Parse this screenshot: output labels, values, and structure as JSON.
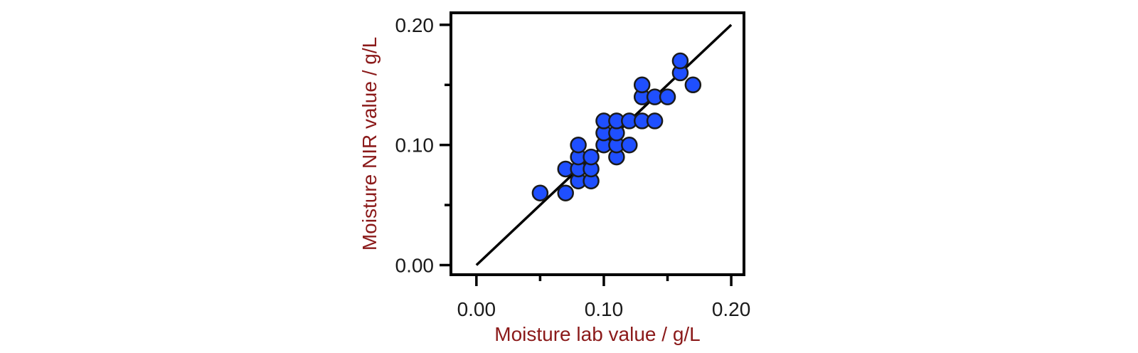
{
  "chart_data": {
    "type": "scatter",
    "title": "",
    "xlabel": "Moisture lab value / g/L",
    "ylabel": "Moisture NIR value / g/L",
    "xlim": [
      -0.02,
      0.21
    ],
    "ylim": [
      -0.008,
      0.21
    ],
    "x_ticks": [
      0.0,
      0.1,
      0.2
    ],
    "x_tick_labels": [
      "0.00",
      "0.10",
      "0.20"
    ],
    "y_ticks": [
      0.0,
      0.1,
      0.2
    ],
    "y_tick_labels": [
      "0.00",
      "0.10",
      "0.20"
    ],
    "grid": false,
    "series": [
      {
        "marker_color": "#1f4fff",
        "points": [
          {
            "x": 0.05,
            "y": 0.06
          },
          {
            "x": 0.07,
            "y": 0.06
          },
          {
            "x": 0.07,
            "y": 0.08
          },
          {
            "x": 0.08,
            "y": 0.07
          },
          {
            "x": 0.08,
            "y": 0.08
          },
          {
            "x": 0.08,
            "y": 0.09
          },
          {
            "x": 0.08,
            "y": 0.1
          },
          {
            "x": 0.09,
            "y": 0.07
          },
          {
            "x": 0.09,
            "y": 0.08
          },
          {
            "x": 0.09,
            "y": 0.09
          },
          {
            "x": 0.1,
            "y": 0.1
          },
          {
            "x": 0.1,
            "y": 0.11
          },
          {
            "x": 0.1,
            "y": 0.12
          },
          {
            "x": 0.11,
            "y": 0.09
          },
          {
            "x": 0.11,
            "y": 0.1
          },
          {
            "x": 0.11,
            "y": 0.11
          },
          {
            "x": 0.11,
            "y": 0.12
          },
          {
            "x": 0.12,
            "y": 0.1
          },
          {
            "x": 0.12,
            "y": 0.12
          },
          {
            "x": 0.13,
            "y": 0.12
          },
          {
            "x": 0.13,
            "y": 0.14
          },
          {
            "x": 0.13,
            "y": 0.15
          },
          {
            "x": 0.14,
            "y": 0.12
          },
          {
            "x": 0.14,
            "y": 0.14
          },
          {
            "x": 0.15,
            "y": 0.14
          },
          {
            "x": 0.16,
            "y": 0.16
          },
          {
            "x": 0.16,
            "y": 0.17
          },
          {
            "x": 0.17,
            "y": 0.15
          }
        ]
      }
    ],
    "reference_line": {
      "x": [
        0.0,
        0.2
      ],
      "y": [
        0.0,
        0.2
      ],
      "color": "#000000"
    }
  }
}
